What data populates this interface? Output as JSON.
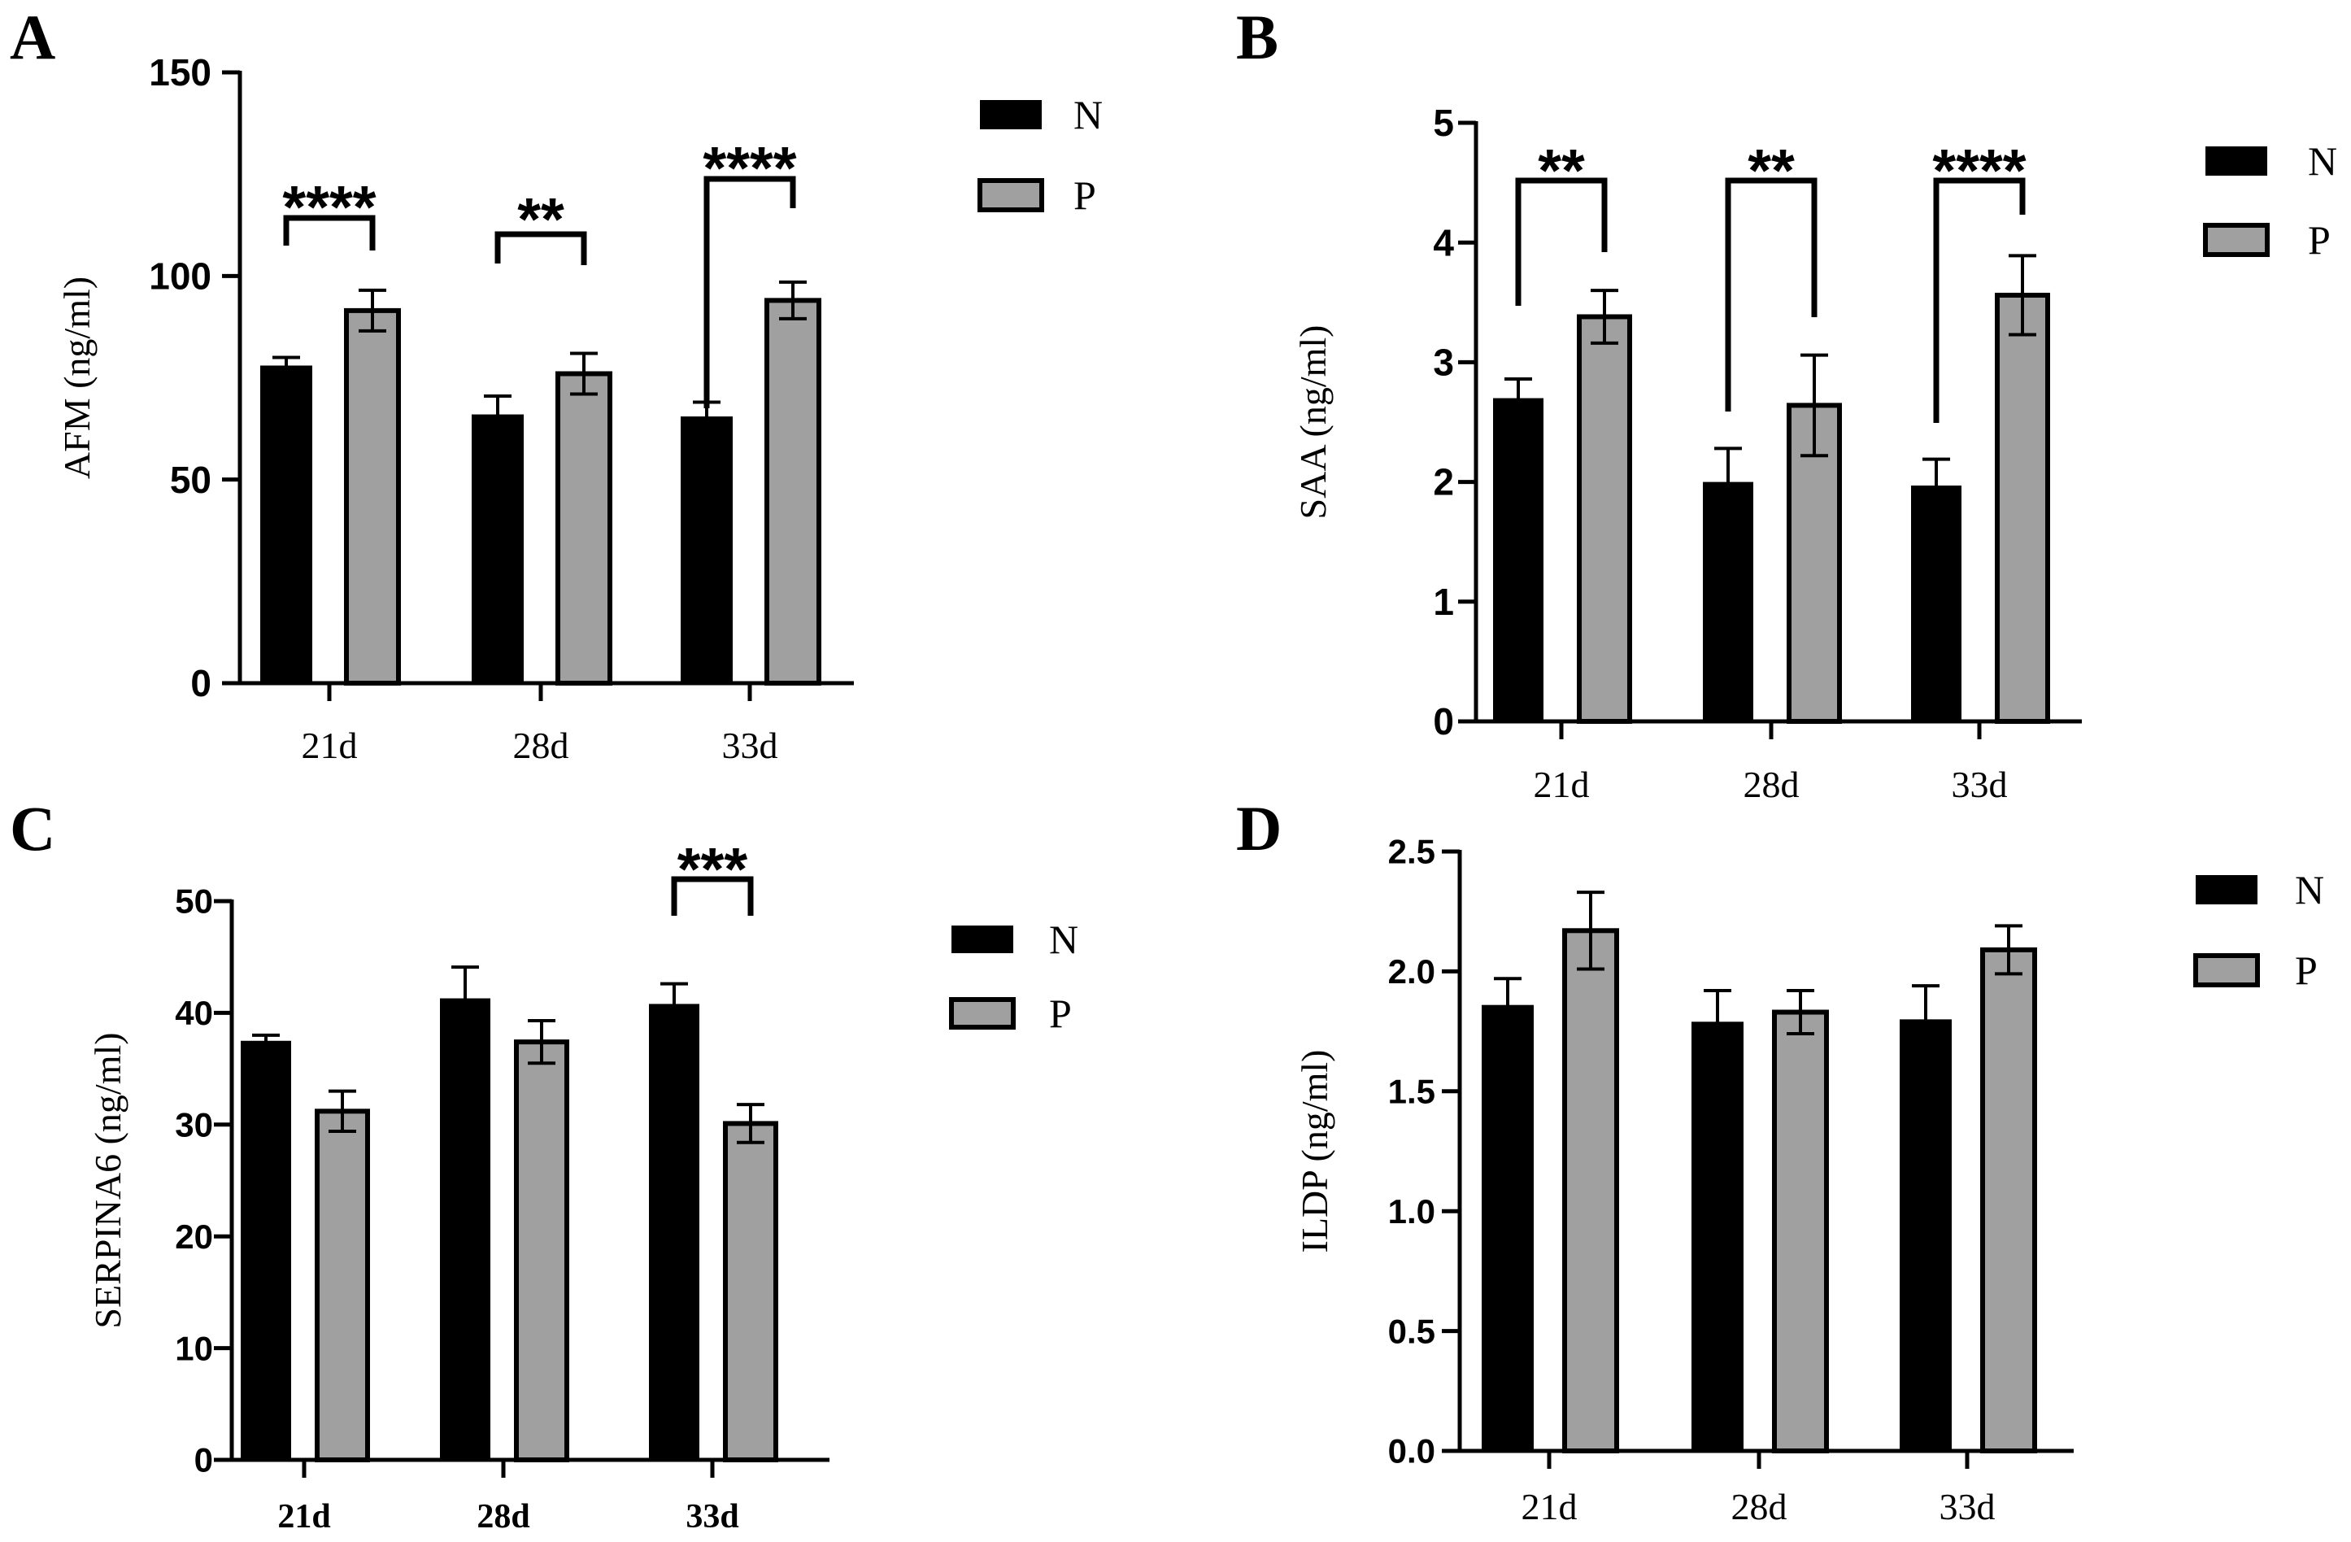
{
  "colors": {
    "N": "#000000",
    "P": "#a0a0a0",
    "axis": "#000000"
  },
  "chart_data": [
    {
      "panel": "A",
      "type": "bar",
      "ylabel": "AFM (ng/ml)",
      "categories": [
        "21d",
        "28d",
        "33d"
      ],
      "ylim": [
        0,
        150
      ],
      "yticks": [
        "0",
        "50",
        "100",
        "150"
      ],
      "series": [
        {
          "name": "N",
          "values": [
            78,
            66,
            65.5
          ],
          "errors": [
            2,
            4.5,
            3.5
          ]
        },
        {
          "name": "P",
          "values": [
            91.5,
            76,
            94
          ],
          "errors": [
            5,
            5,
            4.5
          ]
        }
      ],
      "significance": [
        "****",
        "**",
        "****"
      ],
      "legend": [
        "N",
        "P"
      ]
    },
    {
      "panel": "B",
      "type": "bar",
      "ylabel": "SAA (ng/ml)",
      "categories": [
        "21d",
        "28d",
        "33d"
      ],
      "ylim": [
        0,
        5
      ],
      "yticks": [
        "0",
        "1",
        "2",
        "3",
        "4",
        "5"
      ],
      "series": [
        {
          "name": "N",
          "values": [
            2.7,
            2.0,
            1.97
          ],
          "errors": [
            0.16,
            0.28,
            0.22
          ]
        },
        {
          "name": "P",
          "values": [
            3.38,
            2.64,
            3.56
          ],
          "errors": [
            0.22,
            0.42,
            0.33
          ]
        }
      ],
      "significance": [
        "**",
        "**",
        "****"
      ],
      "legend": [
        "N",
        "P"
      ]
    },
    {
      "panel": "C",
      "type": "bar",
      "ylabel": "SERPINA6 (ng/ml)",
      "categories": [
        "21d",
        "28d",
        "33d"
      ],
      "ylim": [
        0,
        50
      ],
      "yticks": [
        "0",
        "10",
        "20",
        "30",
        "40",
        "50"
      ],
      "series": [
        {
          "name": "N",
          "values": [
            37.5,
            41.3,
            40.8
          ],
          "errors": [
            0.5,
            2.8,
            1.8
          ]
        },
        {
          "name": "P",
          "values": [
            31.2,
            37.4,
            30.1
          ],
          "errors": [
            1.8,
            1.9,
            1.7
          ]
        }
      ],
      "significance": [
        "",
        "",
        "***"
      ],
      "legend": [
        "N",
        "P"
      ]
    },
    {
      "panel": "D",
      "type": "bar",
      "ylabel": "ILDP (ng/ml)",
      "categories": [
        "21d",
        "28d",
        "33d"
      ],
      "ylim": [
        0,
        2.5
      ],
      "yticks": [
        "0.0",
        "0.5",
        "1.0",
        "1.5",
        "2.0",
        "2.5"
      ],
      "series": [
        {
          "name": "N",
          "values": [
            1.86,
            1.79,
            1.8
          ],
          "errors": [
            0.11,
            0.13,
            0.14
          ]
        },
        {
          "name": "P",
          "values": [
            2.17,
            1.83,
            2.09
          ],
          "errors": [
            0.16,
            0.09,
            0.1
          ]
        }
      ],
      "significance": [
        "",
        "",
        ""
      ],
      "legend": [
        "N",
        "P"
      ]
    }
  ]
}
